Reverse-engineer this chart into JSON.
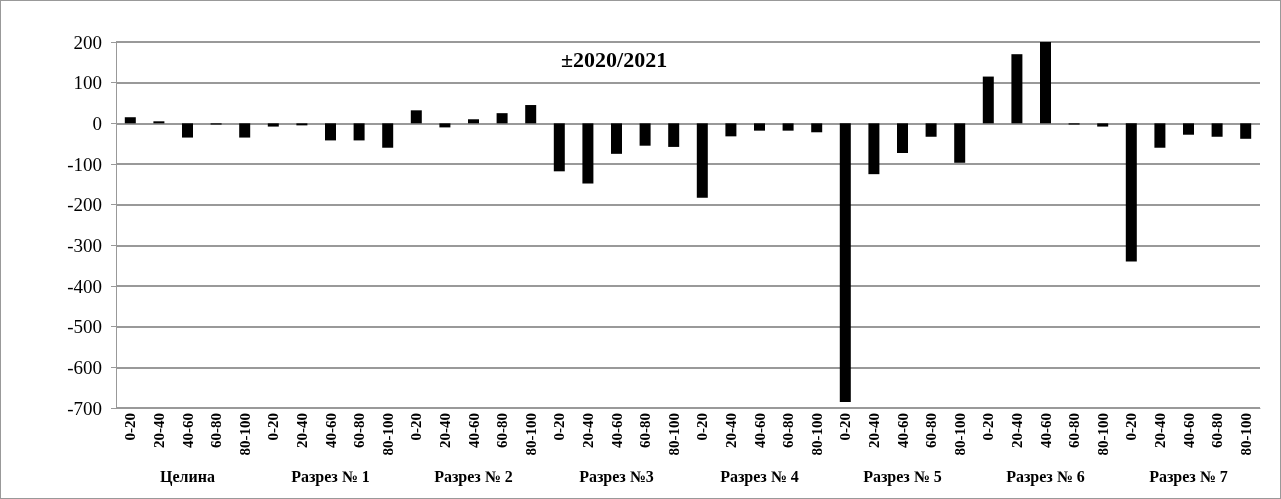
{
  "chart_data": {
    "type": "bar",
    "title": "±2020/2021",
    "categories": [
      "0-20",
      "20-40",
      "40-60",
      "60-80",
      "80-100",
      "0-20",
      "20-40",
      "40-60",
      "60-80",
      "80-100",
      "0-20",
      "20-40",
      "40-60",
      "60-80",
      "80-100",
      "0-20",
      "20-40",
      "40-60",
      "60-80",
      "80-100",
      "0-20",
      "20-40",
      "40-60",
      "60-80",
      "80-100",
      "0-20",
      "20-40",
      "40-60",
      "60-80",
      "80-100",
      "0-20",
      "20-40",
      "40-60",
      "60-80",
      "80-100",
      "0-20",
      "20-40",
      "40-60",
      "60-80",
      "80-100"
    ],
    "values": [
      15,
      5,
      -35,
      -3,
      -35,
      -8,
      -5,
      -42,
      -42,
      -60,
      32,
      -10,
      10,
      25,
      45,
      -118,
      -148,
      -75,
      -55,
      -58,
      -183,
      -32,
      -18,
      -18,
      -22,
      -685,
      -125,
      -73,
      -33,
      -97,
      115,
      170,
      200,
      -3,
      -8,
      -340,
      -60,
      -28,
      -33,
      -38
    ],
    "color": "#000000",
    "annotations": [
      "Целина",
      "Разрез № 1",
      "Разрез № 2",
      "Разрез №3",
      "Разрез № 4",
      "Разрез № 5",
      "Разрез № 6",
      "Разрез № 7"
    ],
    "ylim": [
      -700,
      200
    ],
    "yticks": [
      -700,
      -600,
      -500,
      -400,
      -300,
      -200,
      -100,
      0,
      100,
      200
    ],
    "grid": "y"
  }
}
